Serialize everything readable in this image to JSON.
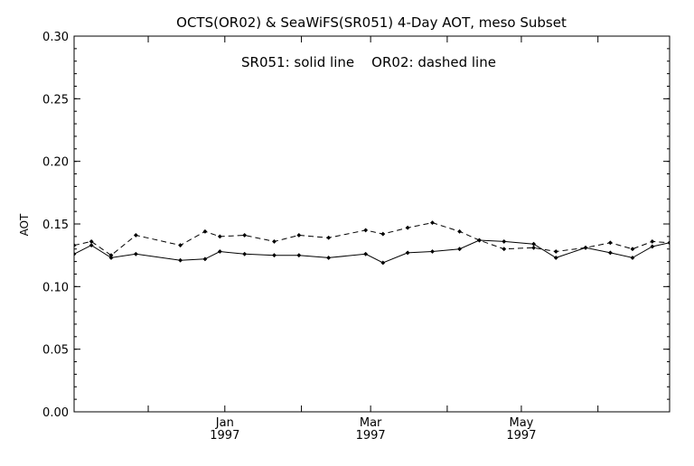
{
  "chart_data": {
    "type": "line",
    "title": "OCTS(OR02) & SeaWiFS(SR051) 4-Day AOT, meso Subset",
    "annotation": "SR051: solid line    OR02: dashed line",
    "ylabel": "AOT",
    "xlabel": "",
    "ylim": [
      0.0,
      0.3
    ],
    "y_ticks": [
      "0.00",
      "0.05",
      "0.10",
      "0.15",
      "0.20",
      "0.25",
      "0.30"
    ],
    "xlim": [
      "1996-11-01",
      "1997-06-30"
    ],
    "x_labels": [
      {
        "date": "1997-01-01",
        "month": "Jan",
        "year": "1997"
      },
      {
        "date": "1997-03-01",
        "month": "Mar",
        "year": "1997"
      },
      {
        "date": "1997-05-01",
        "month": "May",
        "year": "1997"
      }
    ],
    "x_minor_ticks": [
      "1996-12-01",
      "1997-01-01",
      "1997-02-01",
      "1997-03-01",
      "1997-04-01",
      "1997-05-01",
      "1997-06-01"
    ],
    "grid": false,
    "series": [
      {
        "name": "SR051",
        "line_style": "solid",
        "x": [
          "1996-11-01",
          "1996-11-08",
          "1996-11-16",
          "1996-11-26",
          "1996-12-14",
          "1996-12-24",
          "1996-12-30",
          "1997-01-09",
          "1997-01-21",
          "1997-01-31",
          "1997-02-12",
          "1997-02-27",
          "1997-03-06",
          "1997-03-16",
          "1997-03-26",
          "1997-04-06",
          "1997-04-14",
          "1997-04-24",
          "1997-05-06",
          "1997-05-15",
          "1997-05-27",
          "1997-06-06",
          "1997-06-15",
          "1997-06-23",
          "1997-06-30"
        ],
        "values": [
          0.126,
          0.133,
          0.123,
          0.126,
          0.121,
          0.122,
          0.128,
          0.126,
          0.125,
          0.125,
          0.123,
          0.126,
          0.119,
          0.127,
          0.128,
          0.13,
          0.137,
          0.136,
          0.134,
          0.123,
          0.131,
          0.127,
          0.123,
          0.132,
          0.135
        ]
      },
      {
        "name": "OR02",
        "line_style": "dashed",
        "x": [
          "1996-11-01",
          "1996-11-08",
          "1996-11-16",
          "1996-11-26",
          "1996-12-14",
          "1996-12-24",
          "1996-12-30",
          "1997-01-09",
          "1997-01-21",
          "1997-01-31",
          "1997-02-12",
          "1997-02-27",
          "1997-03-06",
          "1997-03-16",
          "1997-03-26",
          "1997-04-06",
          "1997-04-14",
          "1997-04-24",
          "1997-05-06",
          "1997-05-15",
          "1997-05-27",
          "1997-06-06",
          "1997-06-15",
          "1997-06-23",
          "1997-06-30"
        ],
        "values": [
          0.133,
          0.136,
          0.125,
          0.141,
          0.133,
          0.144,
          0.14,
          0.141,
          0.136,
          0.141,
          0.139,
          0.145,
          0.142,
          0.147,
          0.151,
          0.144,
          0.137,
          0.13,
          0.131,
          0.128,
          0.131,
          0.135,
          0.13,
          0.136,
          0.135
        ]
      }
    ]
  }
}
